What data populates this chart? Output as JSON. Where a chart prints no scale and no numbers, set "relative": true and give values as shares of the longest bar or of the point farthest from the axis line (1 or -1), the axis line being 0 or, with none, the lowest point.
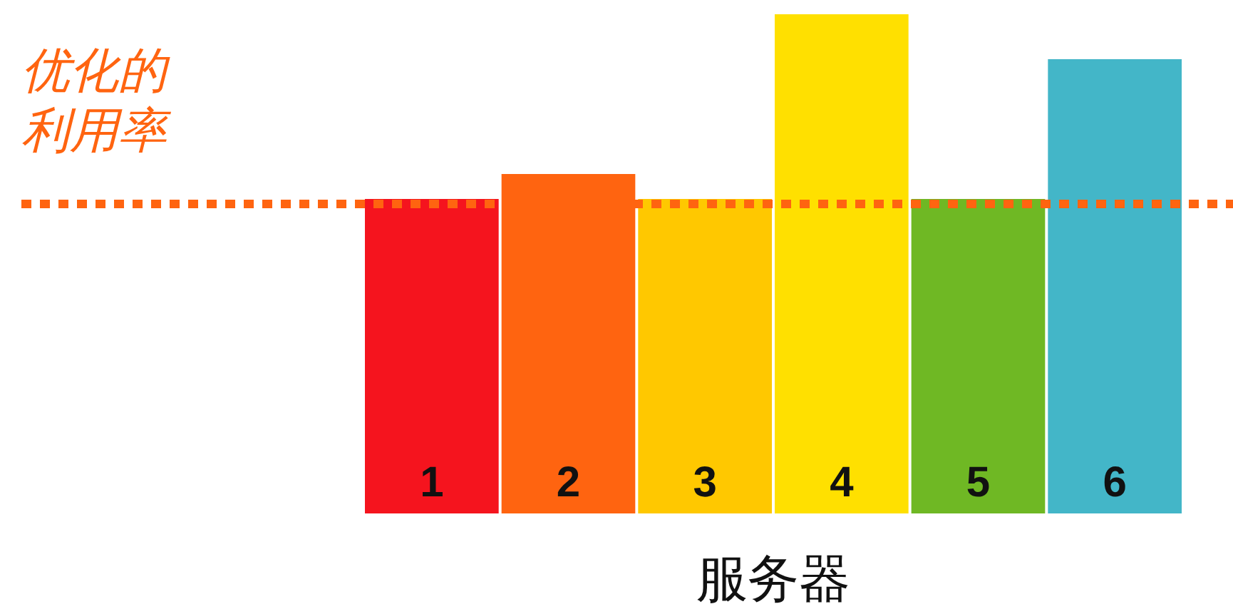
{
  "chart_data": {
    "type": "bar",
    "relative": true,
    "xlabel": "服务器",
    "categories": [
      "1",
      "2",
      "3",
      "4",
      "5",
      "6"
    ],
    "values": [
      0.63,
      0.68,
      0.63,
      1,
      0.63,
      0.91
    ],
    "colors": [
      "#f5141e",
      "#ff6410",
      "#ffc800",
      "#ffe000",
      "#6fb824",
      "#43b6c8"
    ],
    "ref_lines": [
      {
        "axis": "y",
        "value": 0.62,
        "label": "优化的利用率",
        "color": "#ff6410",
        "line_style": "dotted"
      }
    ]
  }
}
